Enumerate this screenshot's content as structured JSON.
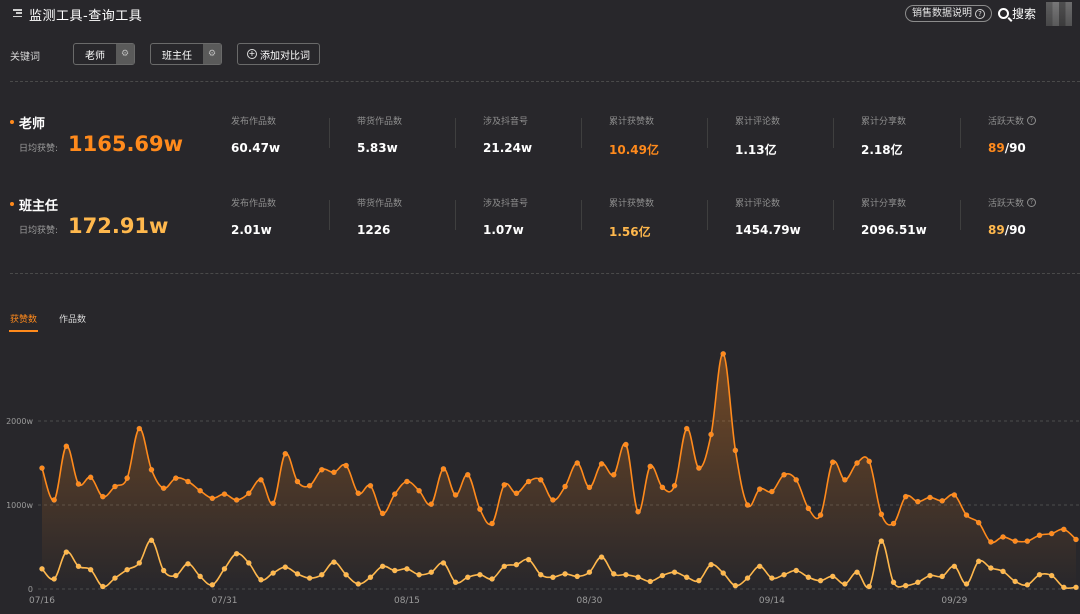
{
  "header": {
    "title": "监测工具-查询工具",
    "help_label": "销售数据说明",
    "search_label": "搜索"
  },
  "keywords": {
    "label": "关键词",
    "chips": [
      "老师",
      "班主任"
    ],
    "add_label": "添加对比词"
  },
  "summary": [
    {
      "name": "老师",
      "sub_label": "日均获赞:",
      "big_value": "1165.69w",
      "metrics": [
        {
          "label": "发布作品数",
          "value": "60.47w"
        },
        {
          "label": "带货作品数",
          "value": "5.83w"
        },
        {
          "label": "涉及抖音号",
          "value": "21.24w"
        },
        {
          "label": "累计获赞数",
          "value": "10.49亿"
        },
        {
          "label": "累计评论数",
          "value": "1.13亿"
        },
        {
          "label": "累计分享数",
          "value": "2.18亿"
        },
        {
          "label": "活跃天数",
          "value_highlight": "89",
          "value_rest": "/90"
        }
      ]
    },
    {
      "name": "班主任",
      "sub_label": "日均获赞:",
      "big_value": "172.91w",
      "metrics": [
        {
          "label": "发布作品数",
          "value": "2.01w"
        },
        {
          "label": "带货作品数",
          "value": "1226"
        },
        {
          "label": "涉及抖音号",
          "value": "1.07w"
        },
        {
          "label": "累计获赞数",
          "value": "1.56亿"
        },
        {
          "label": "累计评论数",
          "value": "1454.79w"
        },
        {
          "label": "累计分享数",
          "value": "2096.51w"
        },
        {
          "label": "活跃天数",
          "value_highlight": "89",
          "value_rest": "/90"
        }
      ]
    }
  ],
  "tabs": [
    {
      "label": "获赞数",
      "active": true
    },
    {
      "label": "作品数",
      "active": false
    }
  ],
  "colors": {
    "accent": "#ff8a1c",
    "series2": "#ffb84d",
    "background": "#28272b"
  },
  "chart_data": {
    "type": "line",
    "title": "",
    "xlabel": "",
    "ylabel": "",
    "y_unit": "w",
    "ylim": [
      0,
      2300
    ],
    "yticks": [
      0,
      1000,
      2000
    ],
    "ytick_labels": [
      "0",
      "1000w",
      "2000w"
    ],
    "x_tick_labels": [
      "07/16",
      "07/31",
      "08/15",
      "08/30",
      "09/14",
      "09/29"
    ],
    "x_tick_index": [
      0,
      15,
      30,
      45,
      60,
      75
    ],
    "grid": true,
    "series": [
      {
        "name": "老师",
        "color": "#ff8a1c",
        "values": [
          1440,
          1060,
          1700,
          1250,
          1330,
          1100,
          1220,
          1320,
          1910,
          1420,
          1200,
          1320,
          1280,
          1170,
          1080,
          1130,
          1060,
          1140,
          1300,
          1020,
          1610,
          1280,
          1230,
          1420,
          1390,
          1470,
          1140,
          1230,
          900,
          1130,
          1280,
          1170,
          1010,
          1430,
          1120,
          1360,
          950,
          780,
          1240,
          1140,
          1280,
          1300,
          1060,
          1220,
          1500,
          1210,
          1490,
          1360,
          1720,
          920,
          1460,
          1210,
          1230,
          1910,
          1440,
          1840,
          2800,
          1650,
          1000,
          1190,
          1160,
          1360,
          1300,
          960,
          880,
          1510,
          1300,
          1500,
          1520,
          890,
          780,
          1100,
          1040,
          1090,
          1050,
          1120,
          880,
          790,
          560,
          620,
          570,
          570,
          640,
          660,
          710,
          590
        ]
      },
      {
        "name": "班主任",
        "color": "#ffb84d",
        "values": [
          240,
          120,
          440,
          270,
          230,
          30,
          130,
          230,
          310,
          580,
          220,
          160,
          300,
          150,
          50,
          240,
          420,
          310,
          110,
          190,
          260,
          180,
          130,
          170,
          320,
          170,
          60,
          140,
          270,
          220,
          240,
          170,
          200,
          310,
          80,
          140,
          170,
          120,
          270,
          290,
          350,
          170,
          140,
          180,
          150,
          200,
          380,
          180,
          170,
          140,
          90,
          160,
          200,
          140,
          100,
          290,
          190,
          40,
          130,
          270,
          130,
          170,
          220,
          140,
          100,
          150,
          60,
          200,
          30,
          570,
          80,
          40,
          80,
          160,
          150,
          270,
          60,
          330,
          250,
          210,
          90,
          50,
          170,
          160,
          20,
          20
        ]
      }
    ]
  }
}
